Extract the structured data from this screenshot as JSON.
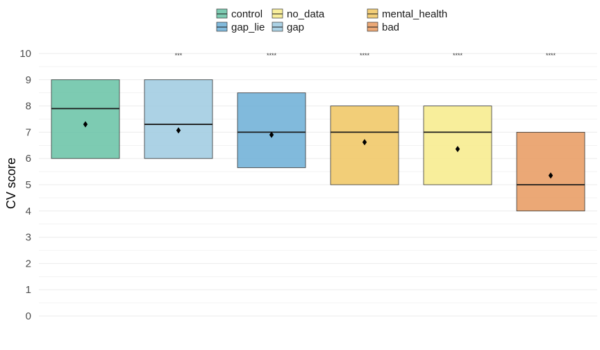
{
  "chart_data": {
    "type": "boxplot",
    "title": "",
    "xlabel": "",
    "ylabel": "CV score",
    "ylim": [
      0,
      10
    ],
    "y_ticks": [
      0,
      1,
      2,
      3,
      4,
      5,
      6,
      7,
      8,
      9,
      10
    ],
    "grid": true,
    "legend_position": "top",
    "legend": [
      "control",
      "gap_lie",
      "no_data",
      "gap",
      "mental_health",
      "bad"
    ],
    "groups": [
      {
        "name": "control",
        "color": "#66c2a5",
        "q1": 6.0,
        "median": 7.9,
        "q3": 9.0,
        "mean": 7.3,
        "significance": ""
      },
      {
        "name": "gap",
        "color": "#9ecae1",
        "q1": 6.0,
        "median": 7.3,
        "q3": 9.0,
        "mean": 7.07,
        "significance": "***"
      },
      {
        "name": "gap_lie",
        "color": "#6baed6",
        "q1": 5.65,
        "median": 7.0,
        "q3": 8.5,
        "mean": 6.9,
        "significance": "****"
      },
      {
        "name": "mental_health",
        "color": "#f0c660",
        "q1": 5.0,
        "median": 7.0,
        "q3": 8.0,
        "mean": 6.62,
        "significance": "****"
      },
      {
        "name": "no_data",
        "color": "#f7eb8a",
        "q1": 5.0,
        "median": 7.0,
        "q3": 8.0,
        "mean": 6.36,
        "significance": "****"
      },
      {
        "name": "bad",
        "color": "#e8995e",
        "q1": 4.0,
        "median": 5.0,
        "q3": 7.0,
        "mean": 5.35,
        "significance": "****"
      }
    ]
  }
}
